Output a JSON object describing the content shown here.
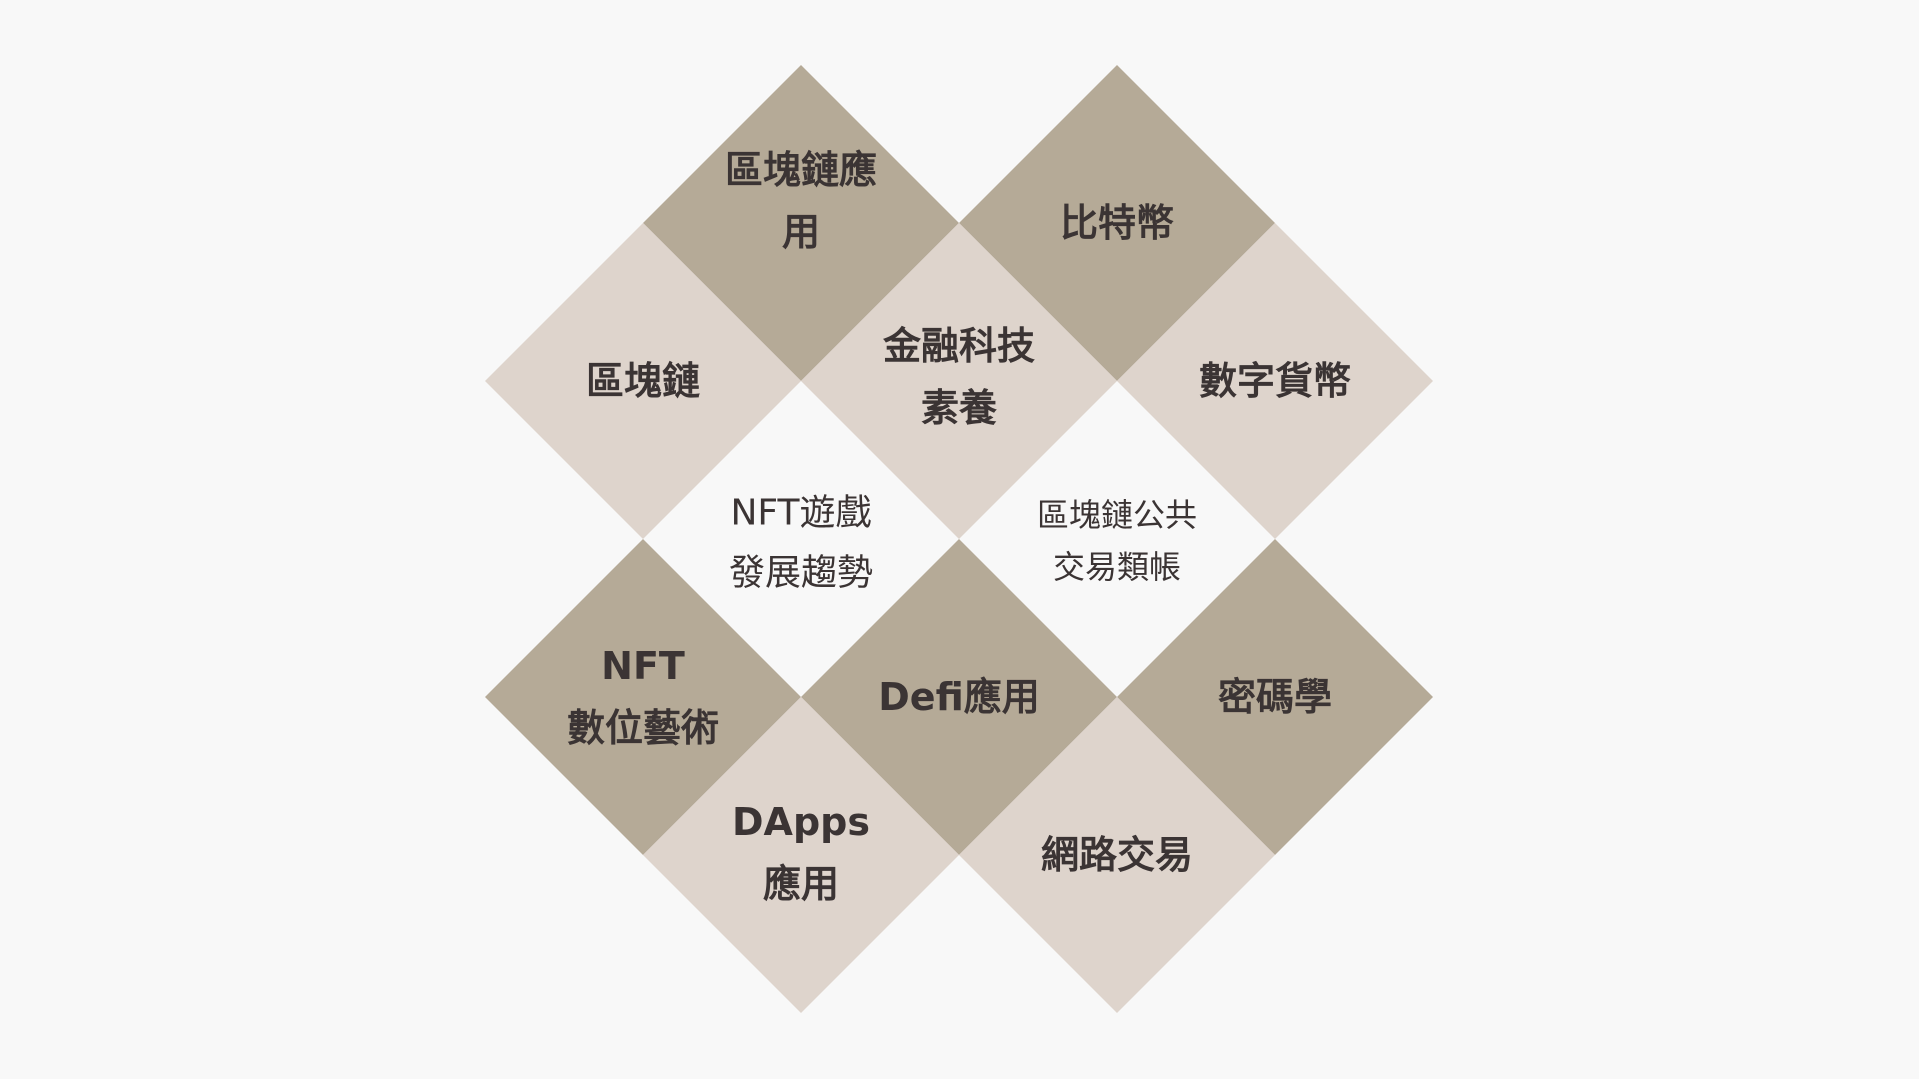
{
  "colors": {
    "background": "#f8f8f8",
    "dark": "#b5aa97",
    "light": "#ded4cc",
    "text": "#3b3434"
  },
  "tiles": [
    {
      "id": "blockchain-applications",
      "tone": "dark",
      "lines": [
        "區塊鏈應",
        "用"
      ]
    },
    {
      "id": "bitcoin",
      "tone": "dark",
      "lines": [
        "比特幣"
      ]
    },
    {
      "id": "blockchain",
      "tone": "light",
      "lines": [
        "區塊鏈"
      ]
    },
    {
      "id": "fintech-literacy",
      "tone": "light",
      "lines": [
        "金融科技",
        "素養"
      ]
    },
    {
      "id": "digital-currency",
      "tone": "light",
      "lines": [
        "數字貨幣"
      ]
    },
    {
      "id": "nft-game-trends",
      "tone": "none",
      "lines": [
        "NFT遊戲",
        "發展趨勢"
      ]
    },
    {
      "id": "public-chain-ledger",
      "tone": "none",
      "lines": [
        "區塊鏈公共",
        "交易類帳"
      ]
    },
    {
      "id": "nft-digital-art",
      "tone": "dark",
      "lines": [
        "NFT",
        "數位藝術"
      ]
    },
    {
      "id": "defi-applications",
      "tone": "dark",
      "lines": [
        "Defi應用"
      ]
    },
    {
      "id": "cryptography",
      "tone": "dark",
      "lines": [
        "密碼學"
      ]
    },
    {
      "id": "dapps-applications",
      "tone": "light",
      "lines": [
        "DApps",
        "應用"
      ]
    },
    {
      "id": "online-trading",
      "tone": "light",
      "lines": [
        "網路交易"
      ]
    }
  ]
}
